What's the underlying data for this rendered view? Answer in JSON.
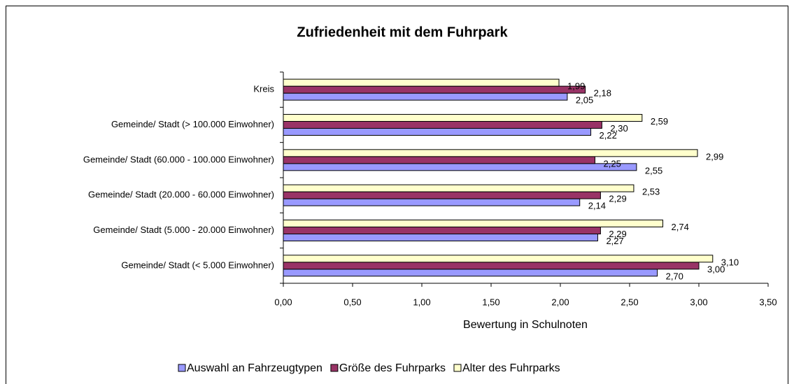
{
  "chart_data": {
    "type": "bar",
    "orientation": "horizontal",
    "title": "Zufriedenheit mit dem Fuhrpark",
    "x_label": "Bewertung in Schulnoten",
    "categories": [
      "Kreis",
      "Gemeinde/ Stadt (> 100.000 Einwohner)",
      "Gemeinde/ Stadt (60.000 - 100.000 Einwohner)",
      "Gemeinde/ Stadt (20.000 - 60.000 Einwohner)",
      "Gemeinde/ Stadt (5.000 - 20.000 Einwohner)",
      "Gemeinde/ Stadt (< 5.000 Einwohner)"
    ],
    "series": [
      {
        "name": "Auswahl an Fahrzeugtypen",
        "color": "#9999ff",
        "values": [
          2.05,
          2.22,
          2.55,
          2.14,
          2.27,
          2.7
        ],
        "value_labels": [
          "2,05",
          "2,22",
          "2,55",
          "2,14",
          "2,27",
          "2,70"
        ]
      },
      {
        "name": "Größe des Fuhrparks",
        "color": "#993366",
        "values": [
          2.18,
          2.3,
          2.25,
          2.29,
          2.29,
          3.0
        ],
        "value_labels": [
          "2,18",
          "2,30",
          "2,25",
          "2,29",
          "2,29",
          "3,00"
        ]
      },
      {
        "name": "Alter des Fuhrparks",
        "color": "#ffffcc",
        "values": [
          1.99,
          2.59,
          2.99,
          2.53,
          2.74,
          3.1
        ],
        "value_labels": [
          "1,99",
          "2,59",
          "2,99",
          "2,53",
          "2,74",
          "3,10"
        ]
      }
    ],
    "xlim": [
      0,
      3.5
    ],
    "xticks": [
      {
        "value": 0,
        "label": "0,00"
      },
      {
        "value": 0.5,
        "label": "0,50"
      },
      {
        "value": 1,
        "label": "1,00"
      },
      {
        "value": 1.5,
        "label": "1,50"
      },
      {
        "value": 2,
        "label": "2,00"
      },
      {
        "value": 2.5,
        "label": "2,50"
      },
      {
        "value": 3,
        "label": "3,00"
      },
      {
        "value": 3.5,
        "label": "3,50"
      }
    ],
    "legend": "bottom",
    "grid": false
  }
}
